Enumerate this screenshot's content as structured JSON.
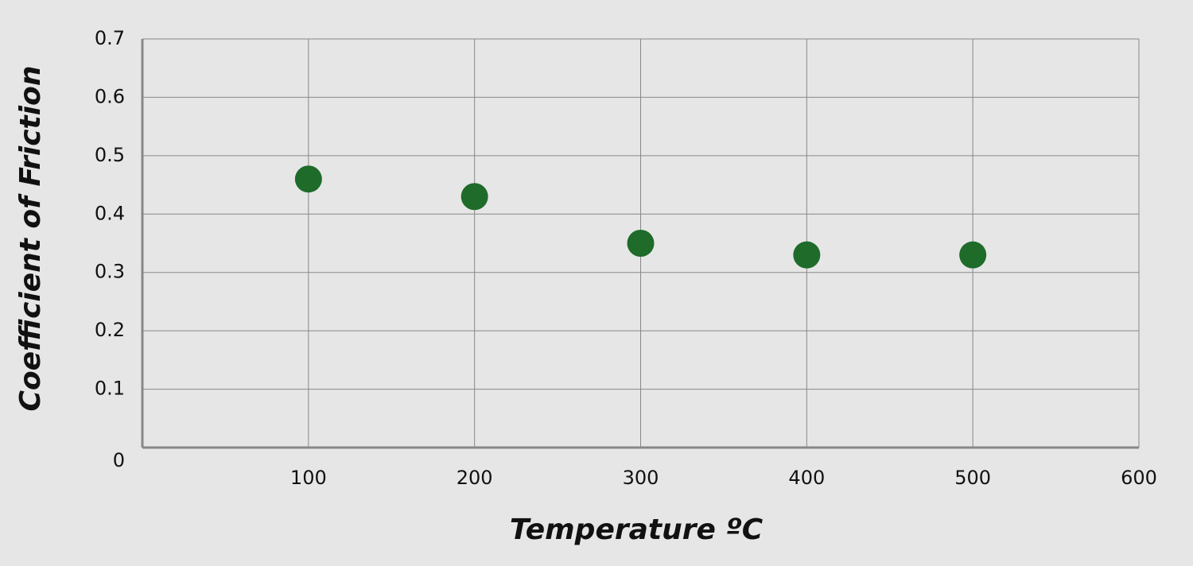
{
  "chart_data": {
    "type": "scatter",
    "x_label": "Temperature ºC",
    "y_label": "Coefficient of Friction",
    "series": [
      {
        "color": "#1e6b2a",
        "x": [
          100,
          200,
          300,
          400,
          500
        ],
        "values": [
          0.46,
          0.43,
          0.35,
          0.33,
          0.33
        ]
      }
    ],
    "xlim": [
      0,
      600
    ],
    "xticks": [
      100,
      200,
      300,
      400,
      500,
      600
    ],
    "ylim": [
      0,
      0.7
    ],
    "yticks": [
      0,
      0.1,
      0.2,
      0.3,
      0.4,
      0.5,
      0.6,
      0.7
    ],
    "grid": true
  }
}
